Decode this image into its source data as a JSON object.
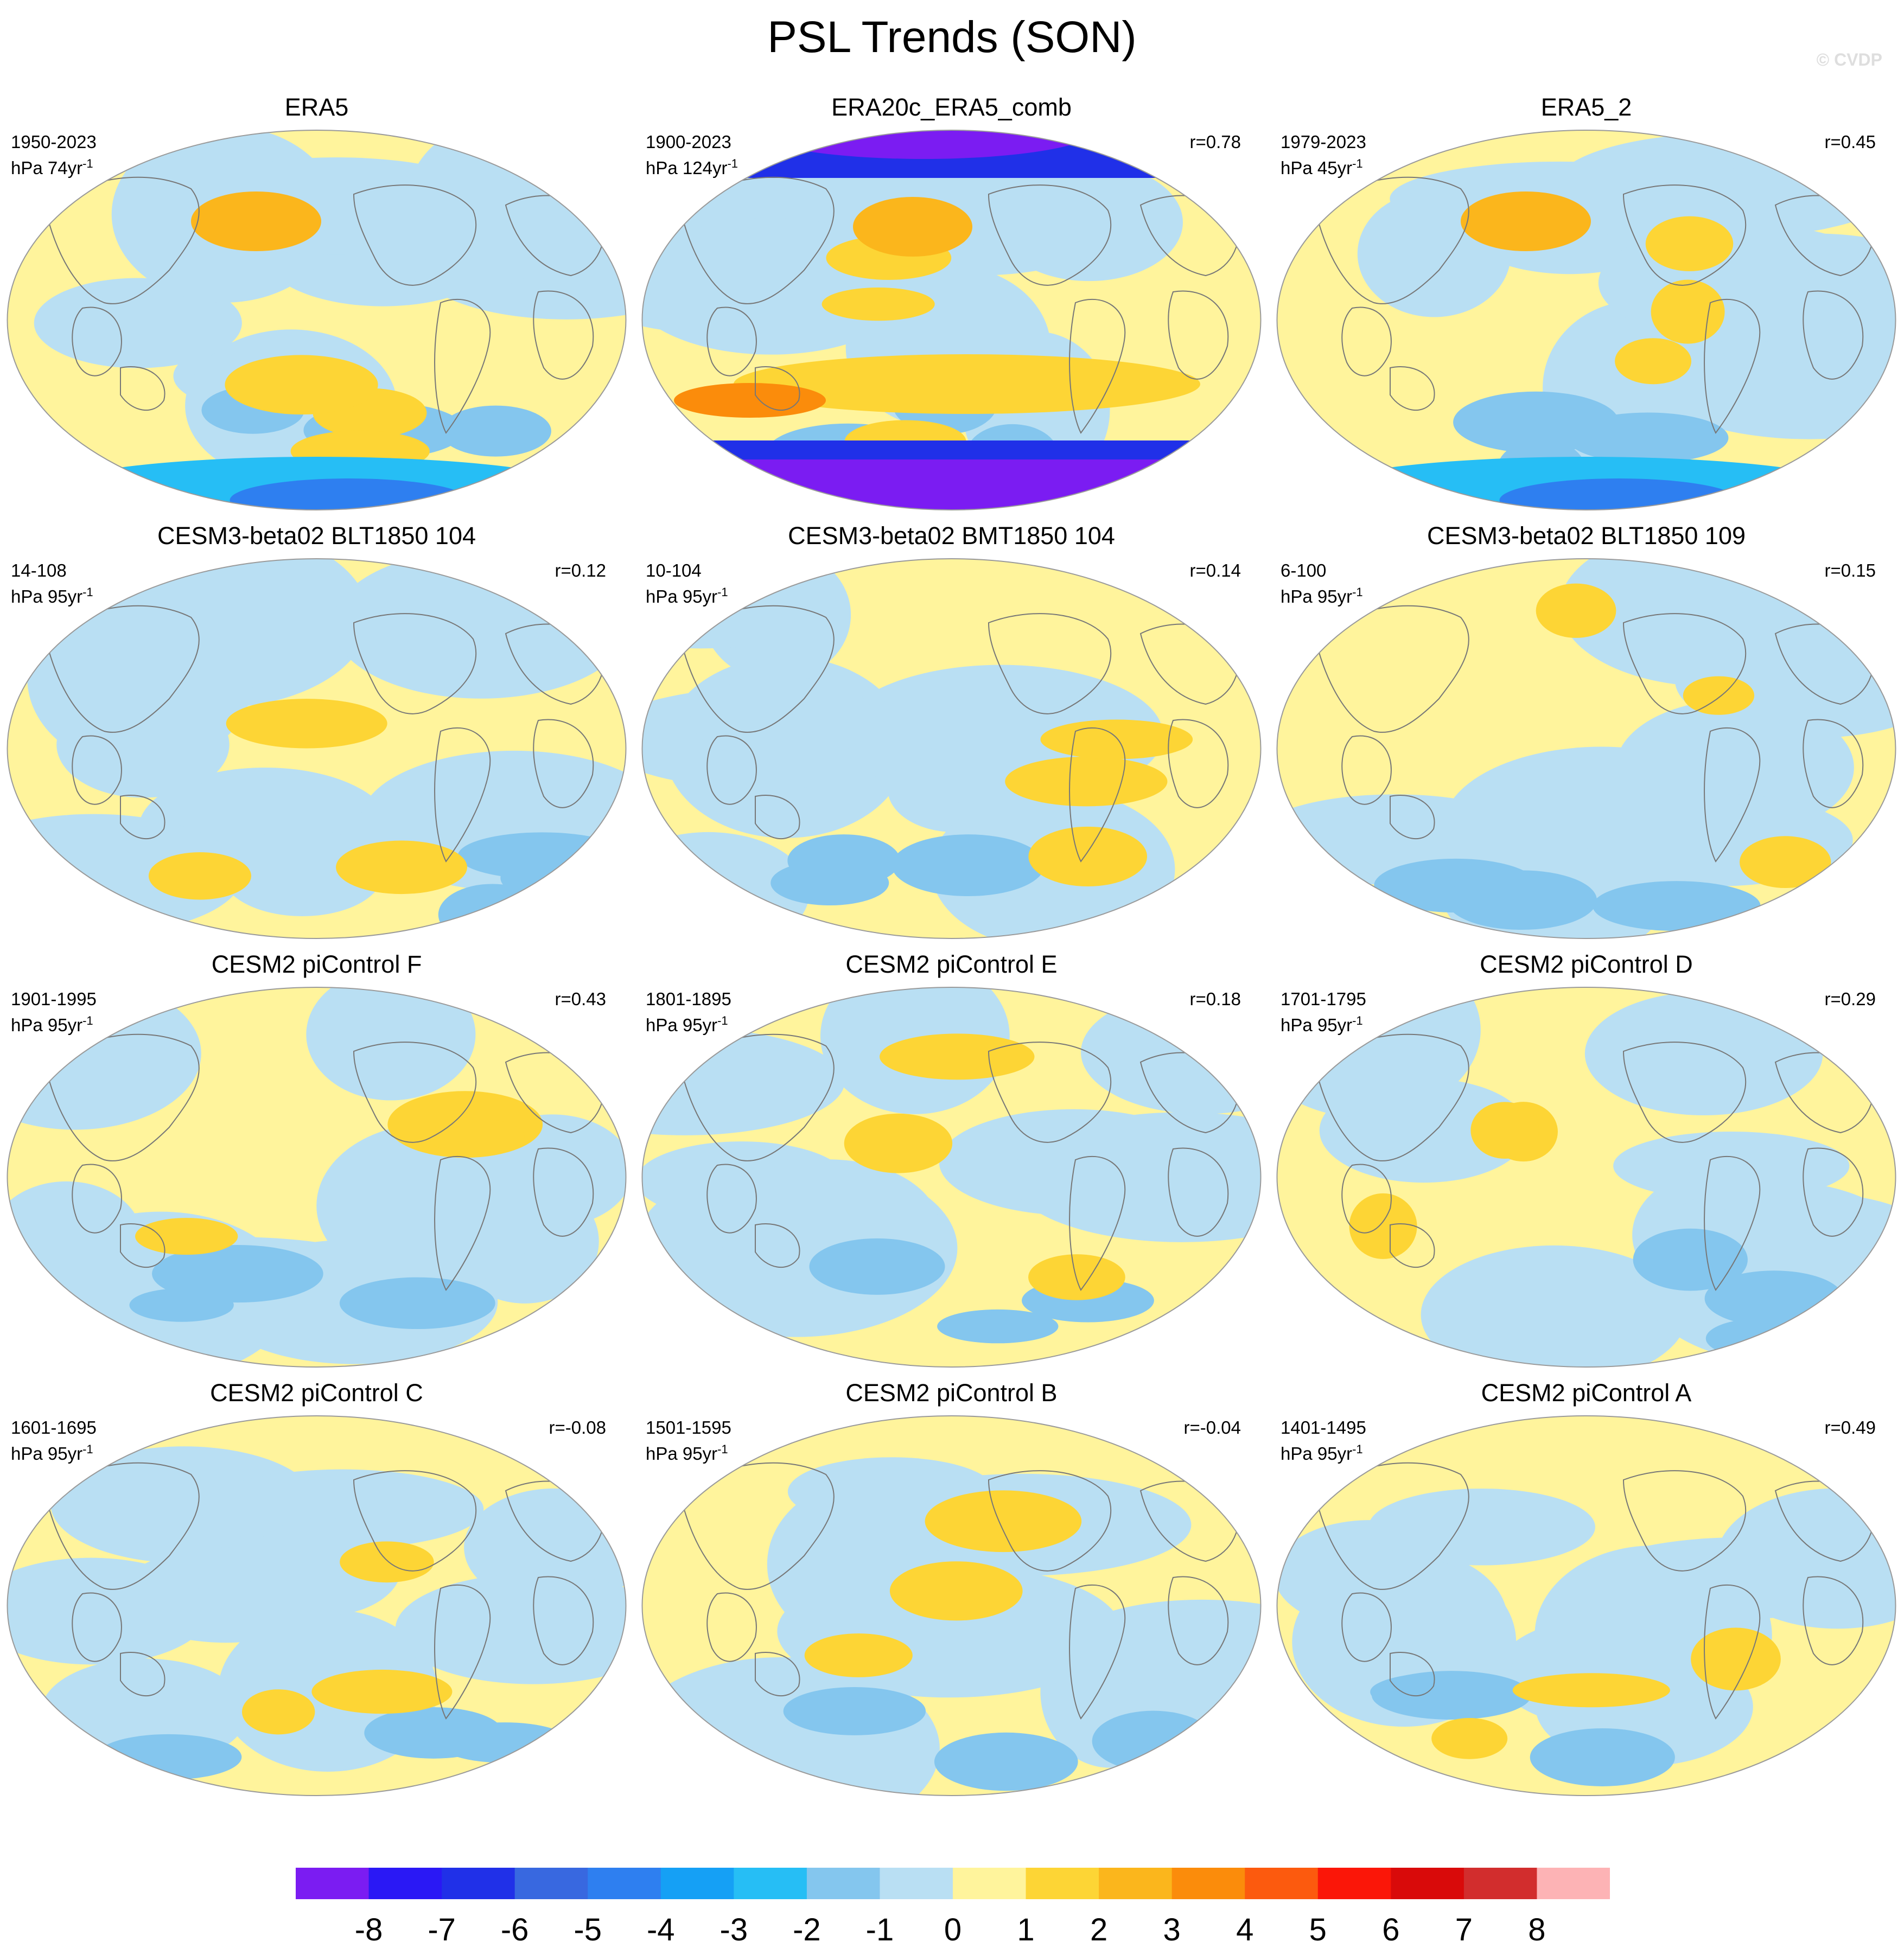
{
  "title": "PSL Trends (SON)",
  "watermark": "© CVDP",
  "chart_data": {
    "type": "map-grid",
    "variable": "PSL",
    "season": "SON",
    "projection": "Robinson",
    "colorbar": {
      "levels": [
        -8,
        -7,
        -6,
        -5,
        -4,
        -3,
        -2,
        -1,
        0,
        1,
        2,
        3,
        4,
        5,
        6,
        7,
        8
      ],
      "colors": [
        "#7b1cf2",
        "#2a18f5",
        "#2030e8",
        "#3868e0",
        "#2e7ff0",
        "#15a0f5",
        "#26bef5",
        "#84c6ee",
        "#b9dff3",
        "#fff49c",
        "#fdd535",
        "#fbb61c",
        "#fb8c0b",
        "#fc5a0e",
        "#fb1608",
        "#d90a0a",
        "#d22d2d",
        "#fdb3b5"
      ]
    },
    "panels": [
      {
        "title": "ERA5",
        "period": "1950-2023",
        "unit": "hPa 74yr",
        "r": ""
      },
      {
        "title": "ERA20c_ERA5_comb",
        "period": "1900-2023",
        "unit": "hPa 124yr",
        "r": "r=0.78"
      },
      {
        "title": "ERA5_2",
        "period": "1979-2023",
        "unit": "hPa 45yr",
        "r": "r=0.45"
      },
      {
        "title": "CESM3-beta02 BLT1850 104",
        "period": "14-108",
        "unit": "hPa 95yr",
        "r": "r=0.12"
      },
      {
        "title": "CESM3-beta02 BMT1850 104",
        "period": "10-104",
        "unit": "hPa 95yr",
        "r": "r=0.14"
      },
      {
        "title": "CESM3-beta02 BLT1850 109",
        "period": "6-100",
        "unit": "hPa 95yr",
        "r": "r=0.15"
      },
      {
        "title": "CESM2 piControl F",
        "period": "1901-1995",
        "unit": "hPa 95yr",
        "r": "r=0.43"
      },
      {
        "title": "CESM2 piControl E",
        "period": "1801-1895",
        "unit": "hPa 95yr",
        "r": "r=0.18"
      },
      {
        "title": "CESM2 piControl D",
        "period": "1701-1795",
        "unit": "hPa 95yr",
        "r": "r=0.29"
      },
      {
        "title": "CESM2 piControl C",
        "period": "1601-1695",
        "unit": "hPa 95yr",
        "r": "r=-0.08"
      },
      {
        "title": "CESM2 piControl B",
        "period": "1501-1595",
        "unit": "hPa 95yr",
        "r": "r=-0.04"
      },
      {
        "title": "CESM2 piControl A",
        "period": "1401-1495",
        "unit": "hPa 95yr",
        "r": "r=0.49"
      }
    ]
  }
}
